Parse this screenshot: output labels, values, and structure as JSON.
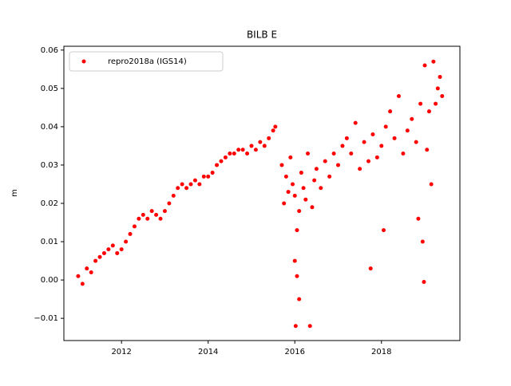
{
  "chart_data": {
    "type": "scatter",
    "title": "BILB E",
    "y_label": "m",
    "legend": "upper left",
    "xlim": [
      2010.67,
      2019.81
    ],
    "ylim": [
      -0.0158,
      0.061
    ],
    "xticks": [
      2012,
      2014,
      2016,
      2018
    ],
    "yticks": [
      {
        "value": -0.01,
        "label": "−0.01"
      },
      {
        "value": 0,
        "label": "0.00"
      },
      0.01,
      0.02,
      0.03,
      0.04,
      0.05,
      0.06
    ],
    "series": [
      {
        "name": "repro2018a (IGS14)",
        "color": "#ff0000",
        "x": [
          2011.0,
          2011.1,
          2011.2,
          2011.3,
          2011.4,
          2011.5,
          2011.6,
          2011.7,
          2011.8,
          2011.9,
          2012.0,
          2012.1,
          2012.2,
          2012.3,
          2012.4,
          2012.5,
          2012.6,
          2012.7,
          2012.8,
          2012.9,
          2013.0,
          2013.1,
          2013.2,
          2013.3,
          2013.4,
          2013.5,
          2013.6,
          2013.7,
          2013.8,
          2013.9,
          2014.0,
          2014.1,
          2014.2,
          2014.3,
          2014.4,
          2014.5,
          2014.6,
          2014.7,
          2014.8,
          2014.9,
          2015.0,
          2015.1,
          2015.2,
          2015.3,
          2015.4,
          2015.5,
          2015.55,
          2015.7,
          2015.75,
          2015.8,
          2015.85,
          2015.9,
          2015.95,
          2016.0,
          2016.05,
          2016.0,
          2016.02,
          2016.05,
          2016.1,
          2016.1,
          2016.15,
          2016.2,
          2016.25,
          2016.3,
          2016.35,
          2016.4,
          2016.45,
          2016.5,
          2016.6,
          2016.7,
          2016.8,
          2016.9,
          2017.0,
          2017.1,
          2017.2,
          2017.3,
          2017.4,
          2017.5,
          2017.6,
          2017.7,
          2017.75,
          2017.8,
          2017.9,
          2018.0,
          2018.05,
          2018.1,
          2018.2,
          2018.3,
          2018.4,
          2018.5,
          2018.6,
          2018.7,
          2018.8,
          2018.85,
          2018.9,
          2018.95,
          2019.0,
          2018.98,
          2019.05,
          2019.1,
          2019.15,
          2019.2,
          2019.25,
          2019.3,
          2019.35,
          2019.4
        ],
        "values": [
          0.001,
          -0.001,
          0.003,
          0.002,
          0.005,
          0.006,
          0.007,
          0.008,
          0.009,
          0.007,
          0.008,
          0.01,
          0.012,
          0.014,
          0.016,
          0.017,
          0.016,
          0.018,
          0.017,
          0.016,
          0.018,
          0.02,
          0.022,
          0.024,
          0.025,
          0.024,
          0.025,
          0.026,
          0.025,
          0.027,
          0.027,
          0.028,
          0.03,
          0.031,
          0.032,
          0.033,
          0.033,
          0.034,
          0.034,
          0.033,
          0.035,
          0.034,
          0.036,
          0.035,
          0.037,
          0.039,
          0.04,
          0.03,
          0.02,
          0.027,
          0.023,
          0.032,
          0.025,
          0.022,
          0.013,
          0.005,
          -0.012,
          0.001,
          0.018,
          -0.005,
          0.028,
          0.024,
          0.021,
          0.033,
          -0.012,
          0.019,
          0.026,
          0.029,
          0.024,
          0.031,
          0.027,
          0.033,
          0.03,
          0.035,
          0.037,
          0.033,
          0.041,
          0.029,
          0.036,
          0.031,
          0.003,
          0.038,
          0.032,
          0.035,
          0.013,
          0.04,
          0.044,
          0.037,
          0.048,
          0.033,
          0.039,
          0.042,
          0.036,
          0.016,
          0.046,
          0.01,
          0.056,
          -0.0005,
          0.034,
          0.044,
          0.025,
          0.057,
          0.046,
          0.05,
          0.053,
          0.048
        ]
      }
    ]
  }
}
